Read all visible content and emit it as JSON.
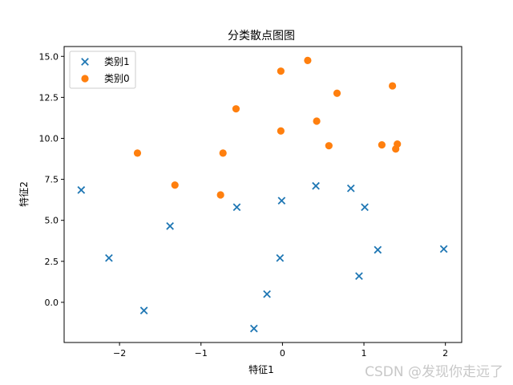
{
  "chart_data": {
    "type": "scatter",
    "title": "分类散点图图",
    "xlabel": "特征1",
    "ylabel": "特征2",
    "xlim": [
      -2.68,
      2.2
    ],
    "ylim": [
      -2.45,
      15.6
    ],
    "xticks": [
      -2,
      -1,
      0,
      1,
      2
    ],
    "yticks": [
      0.0,
      2.5,
      5.0,
      7.5,
      10.0,
      12.5,
      15.0
    ],
    "xtick_labels": [
      "−2",
      "−1",
      "0",
      "1",
      "2"
    ],
    "ytick_labels": [
      "0.0",
      "2.5",
      "5.0",
      "7.5",
      "10.0",
      "12.5",
      "15.0"
    ],
    "grid": false,
    "legend_position": "top-left",
    "series": [
      {
        "name": "类别1",
        "marker": "x",
        "color": "#1f77b4",
        "points": [
          [
            -2.47,
            6.85
          ],
          [
            -2.13,
            2.7
          ],
          [
            -1.7,
            -0.5
          ],
          [
            -1.38,
            4.65
          ],
          [
            -0.56,
            5.8
          ],
          [
            -0.35,
            -1.6
          ],
          [
            -0.19,
            0.5
          ],
          [
            -0.03,
            2.7
          ],
          [
            -0.01,
            6.2
          ],
          [
            0.41,
            7.1
          ],
          [
            0.84,
            6.95
          ],
          [
            0.94,
            1.6
          ],
          [
            1.01,
            5.8
          ],
          [
            1.17,
            3.2
          ],
          [
            1.98,
            3.25
          ]
        ]
      },
      {
        "name": "类别0",
        "marker": "o",
        "color": "#ff7f0e",
        "points": [
          [
            -1.78,
            9.1
          ],
          [
            -1.32,
            7.15
          ],
          [
            -0.76,
            6.55
          ],
          [
            -0.73,
            9.1
          ],
          [
            -0.57,
            11.8
          ],
          [
            -0.02,
            14.1
          ],
          [
            -0.02,
            10.45
          ],
          [
            0.31,
            14.75
          ],
          [
            0.42,
            11.05
          ],
          [
            0.57,
            9.55
          ],
          [
            0.67,
            12.75
          ],
          [
            1.22,
            9.6
          ],
          [
            1.35,
            13.2
          ],
          [
            1.39,
            9.35
          ],
          [
            1.41,
            9.65
          ]
        ]
      }
    ]
  },
  "watermark": "CSDN @发现你走远了"
}
